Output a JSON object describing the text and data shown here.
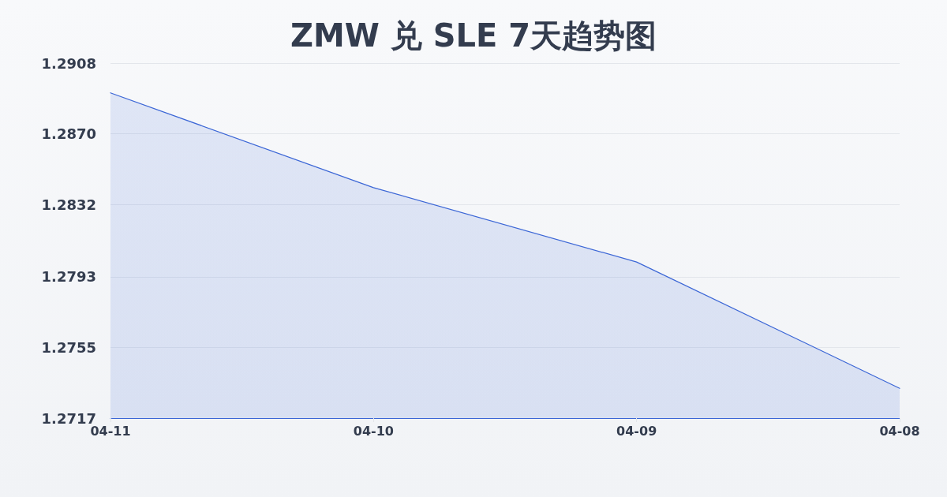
{
  "chart_data": {
    "type": "area",
    "title": "ZMW 兑 SLE 7天趋势图",
    "categories": [
      "04-11",
      "04-10",
      "04-09",
      "04-08"
    ],
    "series": [
      {
        "color": "#3b66d6",
        "values": [
          1.2892,
          1.2841,
          1.2801,
          1.2733
        ]
      }
    ],
    "ylim": [
      1.2717,
      1.2908
    ],
    "yticks": [
      1.2717,
      1.2755,
      1.2793,
      1.2832,
      {
        "value": 1.287,
        "label": "1.2870"
      },
      1.2908
    ],
    "grid": "y",
    "marker": "none"
  }
}
